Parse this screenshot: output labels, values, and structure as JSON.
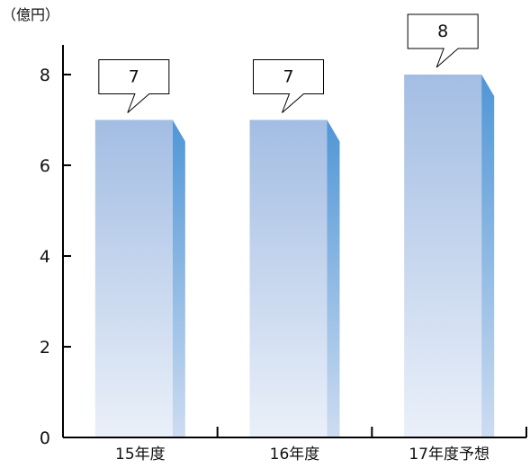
{
  "chart_data": {
    "type": "bar",
    "ylabel": "（億円）",
    "categories": [
      "15年度",
      "16年度",
      "17年度予想"
    ],
    "values": [
      7,
      7,
      8
    ],
    "data_labels": [
      "7",
      "7",
      "8"
    ],
    "ylim": [
      0,
      8
    ],
    "yticks": [
      0,
      2,
      4,
      6,
      8
    ],
    "ytick_labels": [
      "0",
      "2",
      "4",
      "6",
      "8"
    ],
    "grid": false,
    "colors": {
      "bar_top": "#a3bde3",
      "bar_bottom": "#eaf0f9",
      "bar_side": "#4f96d6",
      "axis": "#000000",
      "callout_fill": "#ffffff",
      "callout_stroke": "#000000"
    }
  }
}
